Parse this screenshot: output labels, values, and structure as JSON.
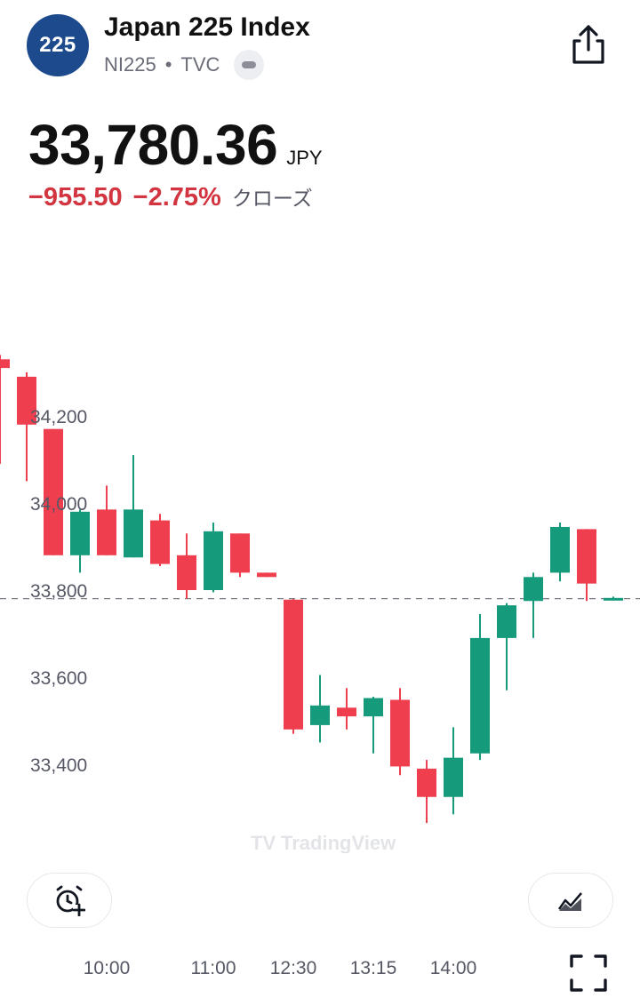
{
  "header": {
    "logo_text": "225",
    "title": "Japan 225 Index",
    "symbol": "NI225",
    "separator": "•",
    "exchange": "TVC"
  },
  "quote": {
    "price": "33,780.36",
    "currency": "JPY",
    "change": "−955.50",
    "change_percent": "−2.75%",
    "status": "クローズ"
  },
  "chart_data": {
    "type": "candlestick",
    "last_price": 33780.36,
    "y_ticks": [
      "34,200",
      "34,000",
      "33,800",
      "33,600",
      "33,400"
    ],
    "y_tick_values": [
      34200,
      34000,
      33800,
      33600,
      33400
    ],
    "x_ticks": [
      "10:00",
      "11:00",
      "12:30",
      "13:15",
      "14:00"
    ],
    "watermark": "TradingView",
    "colors": {
      "up": "#159a7b",
      "down": "#ef3f4f",
      "axis_text": "#555864"
    },
    "candles": [
      {
        "open": 34330,
        "close": 34310,
        "high": 34340,
        "low": 34090
      },
      {
        "open": 34290,
        "close": 34180,
        "high": 34300,
        "low": 34050
      },
      {
        "open": 34170,
        "close": 33880,
        "high": 34170,
        "low": 33880
      },
      {
        "open": 33880,
        "close": 33980,
        "high": 33985,
        "low": 33840
      },
      {
        "open": 33985,
        "close": 33880,
        "high": 34040,
        "low": 33880
      },
      {
        "open": 33875,
        "close": 33985,
        "high": 34110,
        "low": 33875
      },
      {
        "open": 33960,
        "close": 33860,
        "high": 33975,
        "low": 33855
      },
      {
        "open": 33880,
        "close": 33800,
        "high": 33930,
        "low": 33780
      },
      {
        "open": 33800,
        "close": 33935,
        "high": 33955,
        "low": 33795
      },
      {
        "open": 33930,
        "close": 33840,
        "high": 33930,
        "low": 33830
      },
      {
        "open": 33840,
        "close": 33830,
        "high": 33840,
        "low": 33830
      },
      {
        "open": 33778,
        "close": 33480,
        "high": 33780,
        "low": 33470
      },
      {
        "open": 33490,
        "close": 33535,
        "high": 33605,
        "low": 33450
      },
      {
        "open": 33530,
        "close": 33510,
        "high": 33575,
        "low": 33480
      },
      {
        "open": 33510,
        "close": 33552,
        "high": 33555,
        "low": 33425
      },
      {
        "open": 33548,
        "close": 33395,
        "high": 33575,
        "low": 33375
      },
      {
        "open": 33390,
        "close": 33325,
        "high": 33410,
        "low": 33265
      },
      {
        "open": 33325,
        "close": 33415,
        "high": 33485,
        "low": 33285
      },
      {
        "open": 33425,
        "close": 33690,
        "high": 33745,
        "low": 33410
      },
      {
        "open": 33690,
        "close": 33765,
        "high": 33770,
        "low": 33570
      },
      {
        "open": 33775,
        "close": 33830,
        "high": 33840,
        "low": 33690
      },
      {
        "open": 33840,
        "close": 33945,
        "high": 33955,
        "low": 33820
      },
      {
        "open": 33940,
        "close": 33815,
        "high": 33940,
        "low": 33775
      },
      {
        "open": 33780,
        "close": 33782,
        "high": 33785,
        "low": 33778
      }
    ]
  },
  "buttons": {
    "alert": "add-alert",
    "indicators": "indicators",
    "fullscreen": "fullscreen"
  }
}
